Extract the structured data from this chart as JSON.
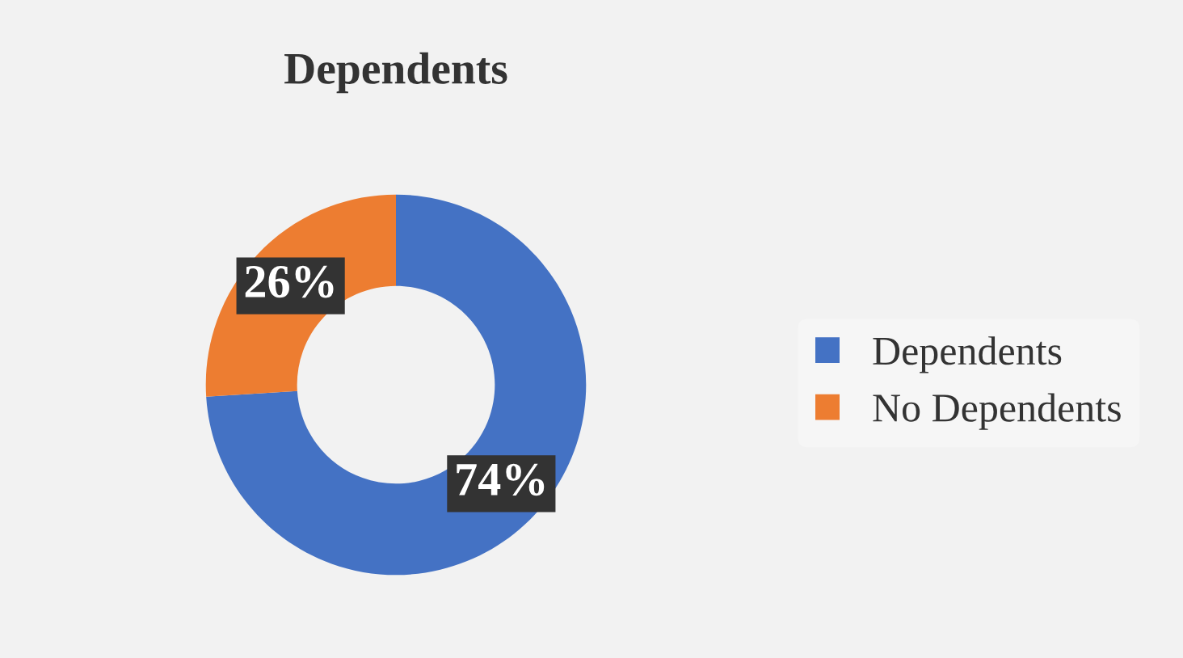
{
  "chart_data": {
    "type": "donut",
    "title": "Dependents",
    "categories": [
      "Dependents",
      "No Dependents"
    ],
    "values": [
      74,
      26
    ],
    "colors": [
      "#4472c4",
      "#ed7d31"
    ],
    "value_labels": [
      "74%",
      "26%"
    ],
    "legend": "right"
  }
}
